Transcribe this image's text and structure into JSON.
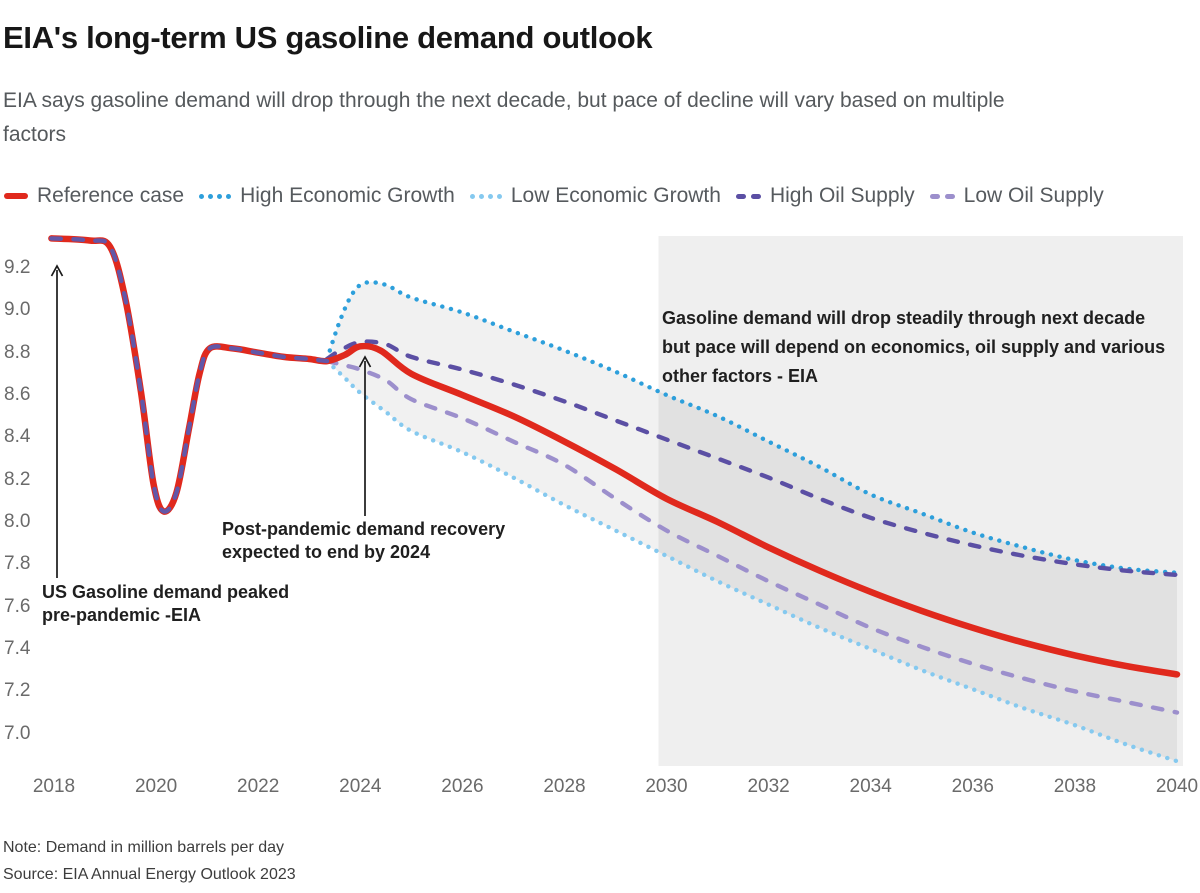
{
  "header": {
    "title": "EIA's long-term US gasoline demand outlook",
    "subtitle_lines": [
      "EIA says gasoline demand will drop through the next decade, but pace of decline will vary based on multiple",
      "factors"
    ]
  },
  "legend": {
    "items": [
      {
        "label": "Reference case",
        "color": "#e0291d",
        "style": "solid"
      },
      {
        "label": "High Economic Growth",
        "color": "#2d9fdb",
        "style": "dotted"
      },
      {
        "label": "Low Economic Growth",
        "color": "#85c9ef",
        "style": "dotted"
      },
      {
        "label": "High Oil Supply",
        "color": "#5b4fa4",
        "style": "dashed"
      },
      {
        "label": "Low Oil Supply",
        "color": "#9c8fcc",
        "style": "dashed"
      }
    ]
  },
  "axes": {
    "y_ticks": [
      "9.2",
      "9.0",
      "8.8",
      "8.6",
      "8.4",
      "8.2",
      "8.0",
      "7.8",
      "7.6",
      "7.4",
      "7.2",
      "7.0"
    ],
    "x_ticks": [
      "2018",
      "2020",
      "2022",
      "2024",
      "2026",
      "2028",
      "2030",
      "2032",
      "2034",
      "2036",
      "2038",
      "2040"
    ]
  },
  "annotations": {
    "peak": {
      "lines": [
        "US Gasoline demand peaked",
        "pre-pandemic -EIA"
      ]
    },
    "recovery": {
      "lines": [
        "Post-pandemic demand recovery",
        "expected to end by 2024"
      ]
    },
    "outlook": {
      "lines": [
        "Gasoline demand will drop steadily through next decade",
        "but pace will depend on economics, oil supply and various",
        "other factors - EIA"
      ]
    }
  },
  "footer": {
    "note": "Note: Demand in million barrels per day",
    "source": "Source: EIA Annual Energy Outlook 2023"
  },
  "chart_data": {
    "type": "line",
    "title": "EIA's long-term US gasoline demand outlook",
    "unit": "million barrels per day",
    "x_range": [
      2018,
      2040
    ],
    "y_range": [
      6.8,
      9.4
    ],
    "grid": false,
    "legend_position": "top",
    "highlight_band": {
      "x_start": 2030,
      "x_end": 2040,
      "color": "#efefef"
    },
    "fan": {
      "between": [
        "High Economic Growth",
        "Low Economic Growth"
      ],
      "fill": "rgba(0,0,0,0.055)"
    },
    "series": [
      {
        "name": "Reference case",
        "color": "#e0291d",
        "style": "solid",
        "width": 6.5,
        "points": [
          [
            2017.95,
            9.34
          ],
          [
            2018.7,
            9.33
          ],
          [
            2019.1,
            9.3
          ],
          [
            2019.4,
            9.05
          ],
          [
            2019.7,
            8.62
          ],
          [
            2019.95,
            8.18
          ],
          [
            2020.15,
            8.05
          ],
          [
            2020.4,
            8.14
          ],
          [
            2020.65,
            8.45
          ],
          [
            2020.85,
            8.7
          ],
          [
            2021.05,
            8.82
          ],
          [
            2021.5,
            8.82
          ],
          [
            2022,
            8.8
          ],
          [
            2022.5,
            8.78
          ],
          [
            2023,
            8.77
          ],
          [
            2023.35,
            8.76
          ],
          [
            2023.7,
            8.79
          ],
          [
            2024,
            8.83
          ],
          [
            2024.4,
            8.81
          ],
          [
            2025,
            8.7
          ],
          [
            2026,
            8.6
          ],
          [
            2027,
            8.5
          ],
          [
            2028,
            8.38
          ],
          [
            2029,
            8.25
          ],
          [
            2030,
            8.11
          ],
          [
            2031,
            8.0
          ],
          [
            2032,
            7.88
          ],
          [
            2033,
            7.77
          ],
          [
            2034,
            7.67
          ],
          [
            2035,
            7.58
          ],
          [
            2036,
            7.5
          ],
          [
            2037,
            7.43
          ],
          [
            2038,
            7.37
          ],
          [
            2039,
            7.32
          ],
          [
            2040,
            7.28
          ]
        ]
      },
      {
        "name": "History overlay (all cases)",
        "color": "#6257a8",
        "style": "dashed",
        "width": 4.4,
        "points": [
          [
            2017.95,
            9.34
          ],
          [
            2018.7,
            9.33
          ],
          [
            2019.1,
            9.3
          ],
          [
            2019.4,
            9.05
          ],
          [
            2019.7,
            8.62
          ],
          [
            2019.95,
            8.18
          ],
          [
            2020.15,
            8.05
          ],
          [
            2020.4,
            8.14
          ],
          [
            2020.65,
            8.45
          ],
          [
            2020.85,
            8.7
          ],
          [
            2021.05,
            8.82
          ],
          [
            2021.5,
            8.82
          ],
          [
            2022,
            8.8
          ],
          [
            2022.5,
            8.78
          ],
          [
            2023,
            8.77
          ],
          [
            2023.35,
            8.76
          ]
        ]
      },
      {
        "name": "High Economic Growth",
        "color": "#2d9fdb",
        "style": "dotted",
        "width": 4.4,
        "points": [
          [
            2023.35,
            8.77
          ],
          [
            2023.6,
            8.95
          ],
          [
            2023.85,
            9.08
          ],
          [
            2024.1,
            9.13
          ],
          [
            2024.5,
            9.12
          ],
          [
            2025,
            9.06
          ],
          [
            2026,
            8.99
          ],
          [
            2027,
            8.9
          ],
          [
            2028,
            8.81
          ],
          [
            2029,
            8.71
          ],
          [
            2030,
            8.6
          ],
          [
            2031,
            8.5
          ],
          [
            2032,
            8.38
          ],
          [
            2033,
            8.26
          ],
          [
            2034,
            8.13
          ],
          [
            2035,
            8.04
          ],
          [
            2036,
            7.95
          ],
          [
            2037,
            7.88
          ],
          [
            2038,
            7.82
          ],
          [
            2039,
            7.78
          ],
          [
            2040,
            7.76
          ]
        ]
      },
      {
        "name": "Low Economic Growth",
        "color": "#85c9ef",
        "style": "dotted",
        "width": 4.4,
        "points": [
          [
            2023.35,
            8.76
          ],
          [
            2023.7,
            8.68
          ],
          [
            2024,
            8.61
          ],
          [
            2024.5,
            8.52
          ],
          [
            2025,
            8.43
          ],
          [
            2026,
            8.33
          ],
          [
            2027,
            8.21
          ],
          [
            2028,
            8.08
          ],
          [
            2029,
            7.96
          ],
          [
            2030,
            7.84
          ],
          [
            2031,
            7.72
          ],
          [
            2032,
            7.61
          ],
          [
            2033,
            7.5
          ],
          [
            2034,
            7.4
          ],
          [
            2035,
            7.3
          ],
          [
            2036,
            7.21
          ],
          [
            2037,
            7.12
          ],
          [
            2038,
            7.04
          ],
          [
            2039,
            6.95
          ],
          [
            2040,
            6.87
          ]
        ]
      },
      {
        "name": "High Oil Supply",
        "color": "#5b4fa4",
        "style": "dashed",
        "width": 4.4,
        "points": [
          [
            2023.35,
            8.77
          ],
          [
            2023.6,
            8.81
          ],
          [
            2024,
            8.85
          ],
          [
            2024.5,
            8.84
          ],
          [
            2025,
            8.78
          ],
          [
            2026,
            8.72
          ],
          [
            2027,
            8.65
          ],
          [
            2028,
            8.57
          ],
          [
            2029,
            8.48
          ],
          [
            2030,
            8.39
          ],
          [
            2031,
            8.3
          ],
          [
            2032,
            8.21
          ],
          [
            2033,
            8.11
          ],
          [
            2034,
            8.02
          ],
          [
            2035,
            7.95
          ],
          [
            2036,
            7.89
          ],
          [
            2037,
            7.84
          ],
          [
            2038,
            7.8
          ],
          [
            2039,
            7.77
          ],
          [
            2040,
            7.75
          ]
        ]
      },
      {
        "name": "Low Oil Supply",
        "color": "#9c8fcc",
        "style": "dashed",
        "width": 4.4,
        "points": [
          [
            2023.35,
            8.76
          ],
          [
            2023.7,
            8.74
          ],
          [
            2024,
            8.72
          ],
          [
            2024.5,
            8.67
          ],
          [
            2025,
            8.58
          ],
          [
            2026,
            8.49
          ],
          [
            2027,
            8.38
          ],
          [
            2028,
            8.27
          ],
          [
            2029,
            8.11
          ],
          [
            2030,
            7.96
          ],
          [
            2031,
            7.84
          ],
          [
            2032,
            7.72
          ],
          [
            2033,
            7.61
          ],
          [
            2034,
            7.5
          ],
          [
            2035,
            7.41
          ],
          [
            2036,
            7.33
          ],
          [
            2037,
            7.26
          ],
          [
            2038,
            7.2
          ],
          [
            2039,
            7.15
          ],
          [
            2040,
            7.1
          ]
        ]
      }
    ]
  }
}
